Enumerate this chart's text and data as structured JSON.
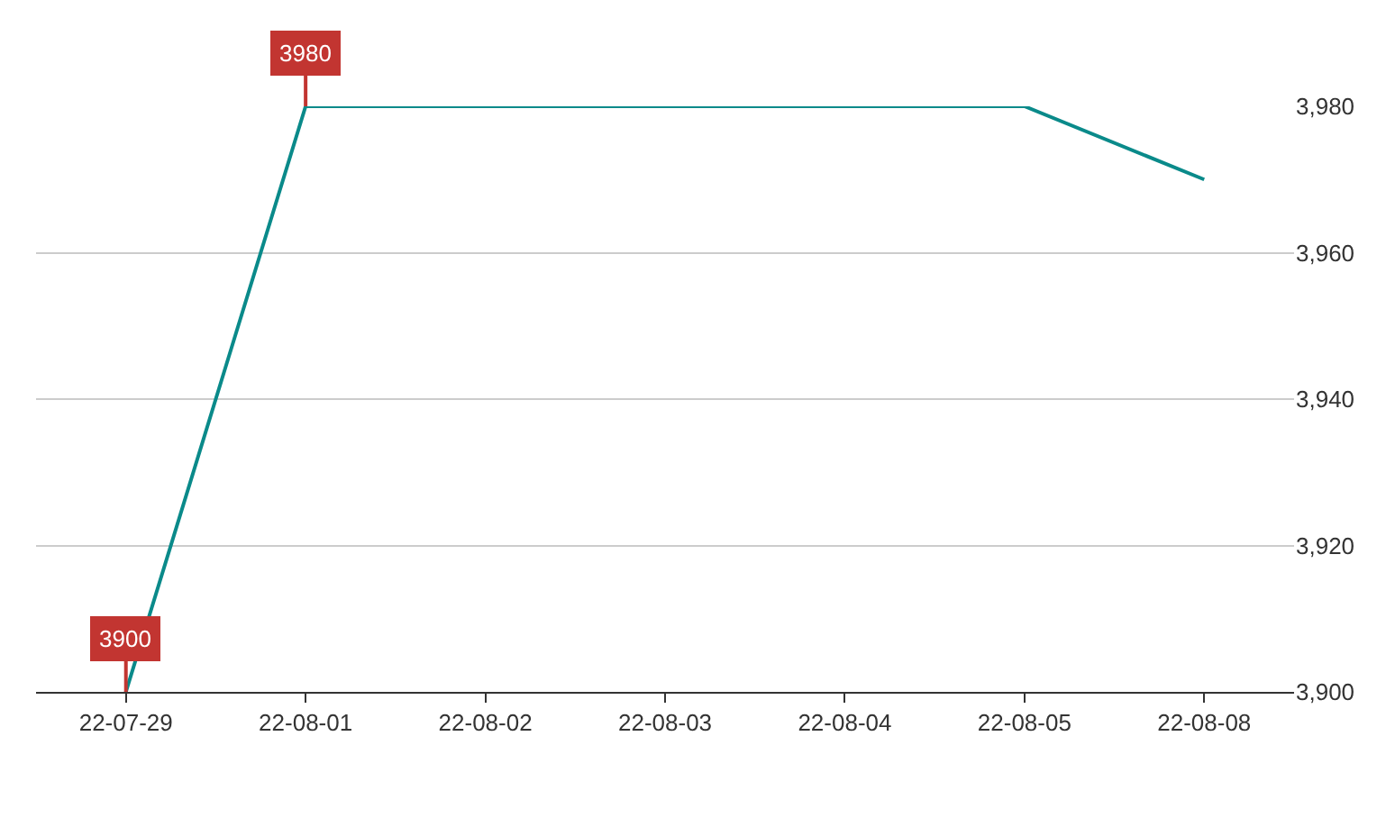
{
  "chart_data": {
    "type": "line",
    "categories": [
      "22-07-29",
      "22-08-01",
      "22-08-02",
      "22-08-03",
      "22-08-04",
      "22-08-05",
      "22-08-08"
    ],
    "series": [
      {
        "color": "#0a8a8a",
        "values": [
          3900,
          3980,
          3980,
          3980,
          3980,
          3980,
          3970
        ]
      }
    ],
    "ylim": [
      3900,
      3980
    ],
    "yticks": [
      {
        "value": 3900,
        "label": "3,900"
      },
      {
        "value": 3920,
        "label": "3,920"
      },
      {
        "value": 3940,
        "label": "3,940"
      },
      {
        "value": 3960,
        "label": "3,960"
      },
      {
        "value": 3980,
        "label": "3,980"
      }
    ],
    "annotations": [
      {
        "text": "3980",
        "x": "22-08-01",
        "y": 3980
      },
      {
        "text": "3900",
        "x": "22-07-29",
        "y": 3900
      }
    ],
    "grid": "y",
    "marker": "none",
    "line_style": "solid"
  }
}
